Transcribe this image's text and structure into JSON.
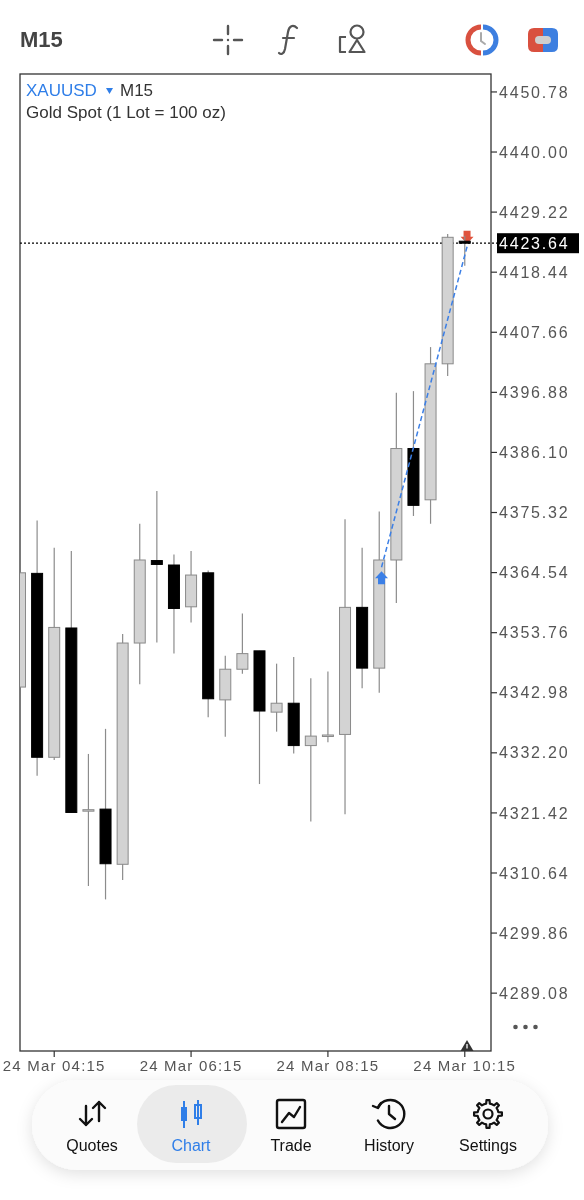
{
  "chart_data": {
    "type": "candlestick",
    "title": "XAUUSD",
    "subtitle": "Gold Spot (1 Lot = 100 oz)",
    "annotations": [
      "M15",
      "M15",
      "Quotes",
      "Chart",
      "Trade",
      "History",
      "Settings"
    ],
    "x": [
      "--03-24T03:45",
      "--03-24T04:00",
      "--03-24T04:15",
      "--03-24T04:30",
      "--03-24T04:45",
      "--03-24T05:00",
      "--03-24T05:15",
      "--03-24T05:30",
      "--03-24T05:45",
      "--03-24T06:00",
      "--03-24T06:15",
      "--03-24T06:30",
      "--03-24T06:45",
      "--03-24T07:00",
      "--03-24T07:15",
      "--03-24T07:30",
      "--03-24T07:45",
      "--03-24T08:00",
      "--03-24T08:15",
      "--03-24T08:30",
      "--03-24T08:45",
      "--03-24T09:00",
      "--03-24T09:15",
      "--03-24T09:30",
      "--03-24T09:45",
      "--03-24T10:00",
      "--03-24T10:15"
    ],
    "ohlc": [
      [
        4344.0,
        4364.5,
        4344.0,
        4364.5
      ],
      [
        4364.4,
        4373.9,
        4328.1,
        4331.4
      ],
      [
        4331.4,
        4369.0,
        4330.9,
        4354.7
      ],
      [
        4354.6,
        4368.4,
        4321.5,
        4321.5
      ],
      [
        4322.0,
        4332.0,
        4308.3,
        4322.0
      ],
      [
        4322.1,
        4336.5,
        4305.9,
        4312.3
      ],
      [
        4312.2,
        4353.5,
        4309.4,
        4351.9
      ],
      [
        4351.9,
        4373.3,
        4344.5,
        4366.8
      ],
      [
        4366.7,
        4379.2,
        4352.0,
        4366.0
      ],
      [
        4365.9,
        4367.8,
        4350.0,
        4358.1
      ],
      [
        4358.4,
        4368.4,
        4355.6,
        4364.1
      ],
      [
        4364.5,
        4364.9,
        4338.6,
        4341.9
      ],
      [
        4341.7,
        4349.6,
        4335.1,
        4347.2
      ],
      [
        4347.2,
        4357.2,
        4346.4,
        4350.0
      ],
      [
        4350.5,
        4350.5,
        4326.6,
        4339.7
      ],
      [
        4339.5,
        4348.2,
        4336.0,
        4341.1
      ],
      [
        4341.1,
        4349.4,
        4332.1,
        4333.5
      ],
      [
        4333.5,
        4345.6,
        4319.9,
        4335.2
      ],
      [
        4335.4,
        4346.8,
        4334.1,
        4335.4
      ],
      [
        4335.5,
        4374.1,
        4321.2,
        4358.3
      ],
      [
        4358.3,
        4369.0,
        4343.8,
        4347.4
      ],
      [
        4347.4,
        4375.5,
        4343.0,
        4366.8
      ],
      [
        4366.8,
        4396.8,
        4359.1,
        4386.8
      ],
      [
        4386.8,
        4397.1,
        4374.7,
        4376.6
      ],
      [
        4377.6,
        4405.0,
        4373.3,
        4402.0
      ],
      [
        4402.0,
        4425.3,
        4399.8,
        4424.7
      ],
      [
        4424.0,
        4425.0,
        4419.6,
        4423.64
      ]
    ],
    "colors": [
      "#d3d3d3",
      "#000000",
      "#d3d3d3",
      "#000000",
      "#d3d3d3",
      "#000000",
      "#d3d3d3",
      "#d3d3d3",
      "#000000",
      "#000000",
      "#d3d3d3",
      "#000000",
      "#d3d3d3",
      "#d3d3d3",
      "#000000",
      "#d3d3d3",
      "#000000",
      "#d3d3d3",
      "#d3d3d3",
      "#d3d3d3",
      "#000000",
      "#d3d3d3",
      "#d3d3d3",
      "#000000",
      "#d3d3d3",
      "#d3d3d3",
      "#000000"
    ],
    "series": [
      {
        "type": "line",
        "x": [
          "--03-24T09:02",
          "--03-24T10:17"
        ],
        "values": [
          4365.5,
          4423.0
        ],
        "color": "#3b7fe6",
        "line_style": "dashed"
      }
    ],
    "xlim": [
      "--03-24T03:45",
      "--03-24T10:38"
    ],
    "xticks": [
      {
        "value": "--03-24T04:15",
        "label": "24 Mar 04:15"
      },
      {
        "value": "--03-24T06:15",
        "label": "24 Mar 06:15"
      },
      {
        "value": "--03-24T08:15",
        "label": "24 Mar 08:15"
      },
      {
        "value": "--03-24T10:15",
        "label": "24 Mar 10:15"
      }
    ],
    "ylim": [
      4278.7,
      4454.0
    ],
    "yticks": [
      4450.78,
      {
        "value": 4440,
        "label": "4440.00"
      },
      4429.22,
      4418.44,
      4407.66,
      4396.88,
      {
        "value": 4386.1,
        "label": "4386.10"
      },
      4375.32,
      4364.54,
      4353.76,
      4342.98,
      {
        "value": 4332.2,
        "label": "4332.20"
      },
      4321.42,
      4310.64,
      4299.86,
      4289.08
    ],
    "ref_lines": [
      {
        "axis": "y",
        "value": 4423.64,
        "label": "4423.64",
        "color": "#000000",
        "line_style": "dotted"
      }
    ]
  }
}
